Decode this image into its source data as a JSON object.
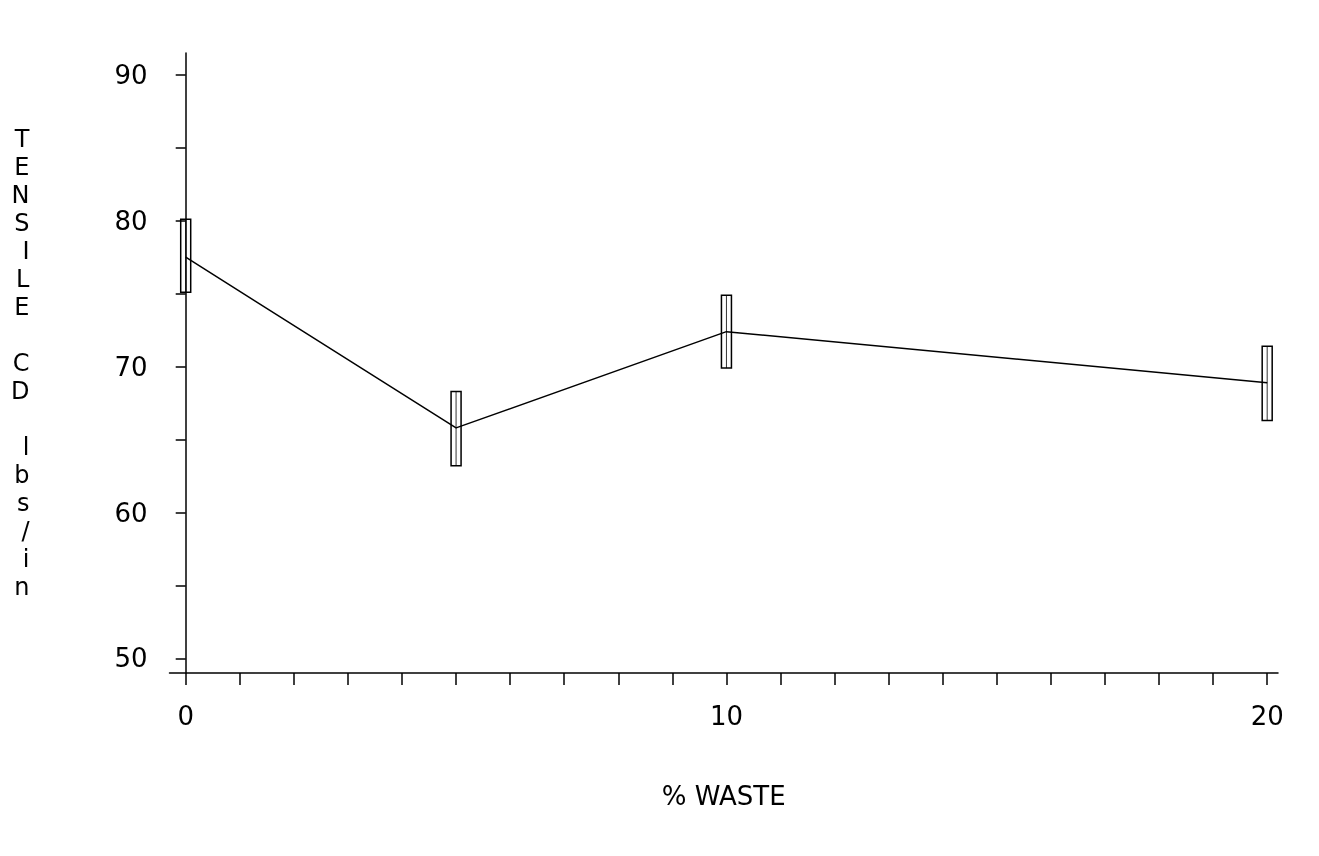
{
  "chart_data": {
    "type": "line",
    "xlabel": "% WASTE",
    "ylabel": "TENSILE CD lbs/in",
    "x": [
      0,
      5,
      10,
      20
    ],
    "values": [
      77.5,
      65.8,
      72.4,
      68.9
    ],
    "errors": [
      [
        75.1,
        80.1
      ],
      [
        63.2,
        68.3
      ],
      [
        69.9,
        74.9
      ],
      [
        66.3,
        71.4
      ]
    ],
    "color": "#000000",
    "xlim": [
      -0.3,
      20.2
    ],
    "xticks": [
      0,
      {
        "value": 1,
        "label": null
      },
      {
        "value": 2,
        "label": null
      },
      {
        "value": 3,
        "label": null
      },
      {
        "value": 4,
        "label": null
      },
      {
        "value": 5,
        "label": null
      },
      {
        "value": 6,
        "label": null
      },
      {
        "value": 7,
        "label": null
      },
      {
        "value": 8,
        "label": null
      },
      {
        "value": 9,
        "label": null
      },
      10,
      {
        "value": 11,
        "label": null
      },
      {
        "value": 12,
        "label": null
      },
      {
        "value": 13,
        "label": null
      },
      {
        "value": 14,
        "label": null
      },
      {
        "value": 15,
        "label": null
      },
      {
        "value": 16,
        "label": null
      },
      {
        "value": 17,
        "label": null
      },
      {
        "value": 18,
        "label": null
      },
      {
        "value": 19,
        "label": null
      },
      20
    ],
    "ylim": [
      49,
      91.5
    ],
    "yticks": [
      50,
      {
        "value": 55,
        "label": null
      },
      60,
      {
        "value": 65,
        "label": null
      },
      70,
      {
        "value": 75,
        "label": null
      },
      80,
      {
        "value": 85,
        "label": null
      },
      90
    ],
    "grid": false,
    "marker": "none",
    "line_style": "solid"
  }
}
